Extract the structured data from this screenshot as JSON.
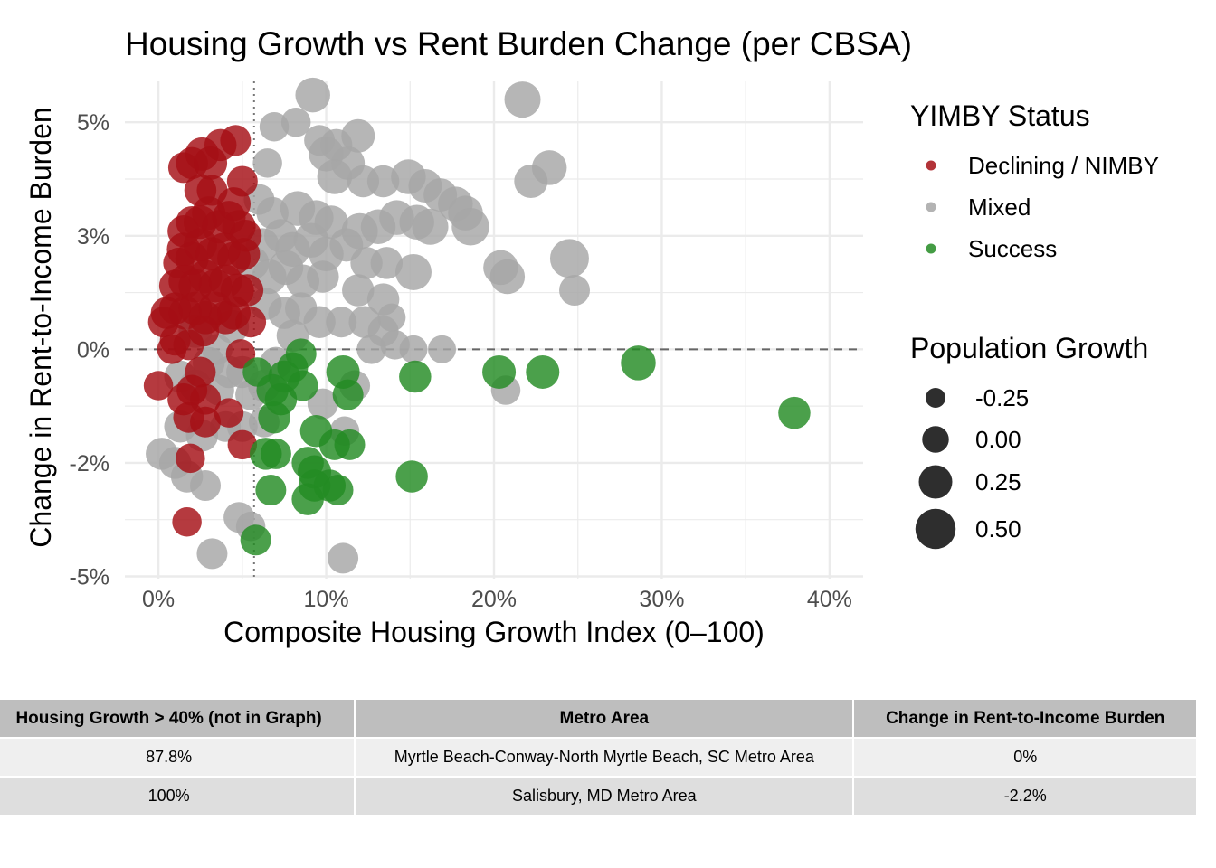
{
  "chart_data": {
    "type": "scatter",
    "title": "Housing Growth vs Rent Burden Change (per CBSA)",
    "xlabel": "Composite Housing Growth Index (0–100)",
    "ylabel": "Change in Rent-to-Income Burden",
    "xlim": [
      -2,
      42
    ],
    "ylim": [
      -5.05,
      5.9
    ],
    "x_ticks": [
      0,
      10,
      20,
      30,
      40
    ],
    "x_tick_labels": [
      "0%",
      "10%",
      "20%",
      "30%",
      "40%"
    ],
    "y_ticks": [
      -5,
      -2.5,
      0,
      2.5,
      5
    ],
    "y_tick_labels": [
      "-5%",
      "-2%",
      "0%",
      "3%",
      "5%"
    ],
    "reference_lines": {
      "horizontal_y": 0,
      "horizontal_style": "dashed",
      "vertical_x": 5.7,
      "vertical_style": "dotted"
    },
    "grid": true,
    "legend_position": "right",
    "color_legend": {
      "title": "YIMBY Status",
      "entries": [
        {
          "name": "Declining / NIMBY",
          "color": "#a50f15"
        },
        {
          "name": "Mixed",
          "color": "#a6a6a6"
        },
        {
          "name": "Success",
          "color": "#238b23"
        }
      ]
    },
    "size_legend": {
      "title": "Population Growth",
      "values": [
        -0.25,
        0.0,
        0.25,
        0.5
      ],
      "labels": [
        "-0.25",
        "0.00",
        "0.25",
        "0.50"
      ]
    },
    "series": [
      {
        "name": "Mixed",
        "color": "#a6a6a6",
        "points": [
          [
            9.2,
            5.6,
            0.3
          ],
          [
            21.7,
            5.5,
            0.35
          ],
          [
            6.9,
            4.9,
            0.1
          ],
          [
            8.2,
            5.0,
            0.1
          ],
          [
            9.6,
            4.6,
            0.15
          ],
          [
            10.6,
            4.5,
            0.2
          ],
          [
            11.9,
            4.7,
            0.25
          ],
          [
            6.5,
            4.1,
            0.1
          ],
          [
            10.0,
            4.3,
            0.3
          ],
          [
            11.3,
            4.1,
            0.25
          ],
          [
            12.2,
            3.7,
            0.2
          ],
          [
            10.5,
            3.8,
            0.3
          ],
          [
            13.4,
            3.7,
            0.2
          ],
          [
            14.9,
            3.8,
            0.3
          ],
          [
            15.9,
            3.6,
            0.25
          ],
          [
            16.8,
            3.4,
            0.25
          ],
          [
            17.7,
            3.2,
            0.3
          ],
          [
            18.3,
            3.0,
            0.3
          ],
          [
            22.2,
            3.7,
            0.25
          ],
          [
            23.3,
            4.0,
            0.3
          ],
          [
            6.0,
            3.3,
            0.15
          ],
          [
            6.8,
            3.0,
            0.2
          ],
          [
            8.3,
            3.1,
            0.3
          ],
          [
            9.4,
            2.9,
            0.3
          ],
          [
            10.3,
            2.8,
            0.25
          ],
          [
            12.0,
            2.6,
            0.35
          ],
          [
            13.1,
            2.7,
            0.3
          ],
          [
            14.2,
            2.9,
            0.3
          ],
          [
            15.4,
            2.8,
            0.3
          ],
          [
            16.2,
            2.7,
            0.35
          ],
          [
            18.6,
            2.7,
            0.4
          ],
          [
            6.2,
            2.3,
            0.25
          ],
          [
            7.3,
            2.5,
            0.25
          ],
          [
            8.0,
            2.2,
            0.3
          ],
          [
            9.1,
            2.4,
            0.3
          ],
          [
            10.0,
            2.1,
            0.3
          ],
          [
            11.2,
            2.3,
            0.25
          ],
          [
            12.4,
            1.9,
            0.2
          ],
          [
            13.6,
            1.9,
            0.2
          ],
          [
            15.2,
            1.7,
            0.35
          ],
          [
            5.6,
            1.9,
            0.25
          ],
          [
            6.6,
            1.6,
            0.3
          ],
          [
            7.6,
            1.8,
            0.3
          ],
          [
            8.6,
            1.5,
            0.25
          ],
          [
            9.8,
            1.6,
            0.2
          ],
          [
            11.9,
            1.3,
            0.2
          ],
          [
            13.4,
            1.1,
            0.2
          ],
          [
            20.4,
            1.8,
            0.3
          ],
          [
            20.8,
            1.6,
            0.3
          ],
          [
            24.5,
            2.0,
            0.45
          ],
          [
            24.8,
            1.3,
            0.15
          ],
          [
            6.4,
            1.0,
            0.2
          ],
          [
            7.5,
            0.8,
            0.2
          ],
          [
            8.5,
            0.9,
            0.2
          ],
          [
            9.6,
            0.6,
            0.2
          ],
          [
            10.9,
            0.6,
            0.15
          ],
          [
            12.3,
            0.6,
            0.2
          ],
          [
            13.4,
            0.4,
            0.15
          ],
          [
            14.1,
            0.1,
            0.1
          ],
          [
            15.2,
            0.0,
            0.05
          ],
          [
            16.9,
            0.0,
            0.05
          ],
          [
            13.9,
            0.7,
            0.05
          ],
          [
            2.2,
            0.4,
            0.25
          ],
          [
            3.0,
            -0.3,
            0.2
          ],
          [
            4.2,
            -0.5,
            0.2
          ],
          [
            5.0,
            -0.5,
            0.2
          ],
          [
            1.3,
            -0.6,
            0.2
          ],
          [
            2.2,
            -0.8,
            0.2
          ],
          [
            3.6,
            -0.9,
            0.15
          ],
          [
            5.5,
            -1.0,
            0.15
          ],
          [
            6.3,
            -0.8,
            0.2
          ],
          [
            1.3,
            -1.7,
            0.2
          ],
          [
            2.6,
            -1.9,
            0.2
          ],
          [
            4.0,
            -1.7,
            0.15
          ],
          [
            5.0,
            -1.7,
            0.15
          ],
          [
            0.2,
            -2.3,
            0.2
          ],
          [
            1.0,
            -2.5,
            0.2
          ],
          [
            1.7,
            -2.8,
            0.2
          ],
          [
            2.8,
            -3.0,
            0.15
          ],
          [
            4.8,
            -3.7,
            0.15
          ],
          [
            5.5,
            -3.9,
            0.1
          ],
          [
            3.2,
            -4.5,
            0.15
          ],
          [
            11.0,
            -4.6,
            0.15
          ],
          [
            20.7,
            -0.9,
            0.1
          ],
          [
            11.7,
            -0.8,
            0.15
          ],
          [
            9.8,
            -1.2,
            0.15
          ],
          [
            3.5,
            0.0,
            0.15
          ],
          [
            4.4,
            0.5,
            0.25
          ],
          [
            8.0,
            0.3,
            0.2
          ],
          [
            12.7,
            0.0,
            0.1
          ],
          [
            7.0,
            -0.3,
            0.2
          ],
          [
            6.3,
            -1.6,
            0.15
          ],
          [
            11.1,
            -1.8,
            0.1
          ]
        ]
      },
      {
        "name": "Declining / NIMBY",
        "color": "#a50f15",
        "points": [
          [
            1.5,
            4.0,
            0.15
          ],
          [
            2.0,
            4.1,
            0.2
          ],
          [
            2.6,
            4.3,
            0.25
          ],
          [
            3.7,
            4.5,
            0.2
          ],
          [
            4.6,
            4.6,
            0.15
          ],
          [
            3.1,
            4.1,
            0.25
          ],
          [
            5.0,
            3.7,
            0.15
          ],
          [
            2.5,
            3.5,
            0.2
          ],
          [
            4.5,
            3.2,
            0.25
          ],
          [
            1.5,
            2.6,
            0.2
          ],
          [
            2.0,
            2.8,
            0.2
          ],
          [
            2.5,
            2.8,
            0.25
          ],
          [
            3.0,
            3.0,
            0.25
          ],
          [
            3.6,
            2.7,
            0.25
          ],
          [
            4.2,
            2.9,
            0.25
          ],
          [
            4.8,
            2.7,
            0.25
          ],
          [
            5.2,
            2.5,
            0.2
          ],
          [
            1.5,
            2.2,
            0.25
          ],
          [
            2.0,
            2.0,
            0.25
          ],
          [
            2.5,
            2.3,
            0.25
          ],
          [
            3.2,
            2.1,
            0.25
          ],
          [
            3.9,
            2.2,
            0.25
          ],
          [
            4.5,
            2.0,
            0.25
          ],
          [
            5.1,
            2.1,
            0.2
          ],
          [
            1.0,
            1.4,
            0.2
          ],
          [
            1.6,
            1.5,
            0.25
          ],
          [
            2.2,
            1.4,
            0.25
          ],
          [
            2.8,
            1.6,
            0.25
          ],
          [
            3.4,
            1.4,
            0.25
          ],
          [
            4.0,
            1.5,
            0.25
          ],
          [
            4.7,
            1.3,
            0.25
          ],
          [
            5.3,
            1.3,
            0.2
          ],
          [
            0.5,
            0.8,
            0.2
          ],
          [
            1.0,
            0.9,
            0.2
          ],
          [
            1.6,
            0.8,
            0.25
          ],
          [
            2.2,
            0.9,
            0.25
          ],
          [
            2.8,
            0.7,
            0.25
          ],
          [
            3.4,
            0.9,
            0.25
          ],
          [
            4.0,
            0.7,
            0.25
          ],
          [
            4.5,
            0.8,
            0.25
          ],
          [
            5.5,
            0.6,
            0.15
          ],
          [
            0.3,
            0.6,
            0.15
          ],
          [
            1.0,
            0.2,
            0.15
          ],
          [
            1.8,
            0.1,
            0.15
          ],
          [
            0.8,
            0.0,
            0.1
          ],
          [
            2.5,
            -0.5,
            0.15
          ],
          [
            2.0,
            -0.9,
            0.15
          ],
          [
            1.5,
            -1.1,
            0.2
          ],
          [
            2.8,
            -1.1,
            0.15
          ],
          [
            1.8,
            -1.5,
            0.15
          ],
          [
            2.8,
            -1.6,
            0.15
          ],
          [
            4.2,
            -1.4,
            0.1
          ],
          [
            5.0,
            -2.1,
            0.1
          ],
          [
            1.9,
            -2.4,
            0.1
          ],
          [
            1.7,
            -3.8,
            0.1
          ],
          [
            0.0,
            -0.8,
            0.1
          ],
          [
            4.9,
            -0.1,
            0.1
          ],
          [
            2.7,
            0.4,
            0.15
          ],
          [
            3.2,
            3.5,
            0.15
          ],
          [
            1.2,
            1.9,
            0.15
          ]
        ]
      },
      {
        "name": "Success",
        "color": "#238b23",
        "points": [
          [
            8.5,
            -0.1,
            0.15
          ],
          [
            8.0,
            -0.4,
            0.15
          ],
          [
            7.5,
            -0.6,
            0.2
          ],
          [
            6.8,
            -0.9,
            0.2
          ],
          [
            7.3,
            -1.1,
            0.2
          ],
          [
            6.9,
            -1.5,
            0.2
          ],
          [
            8.6,
            -0.8,
            0.15
          ],
          [
            5.9,
            -0.5,
            0.1
          ],
          [
            11.0,
            -0.5,
            0.25
          ],
          [
            11.3,
            -1.0,
            0.15
          ],
          [
            15.3,
            -0.6,
            0.2
          ],
          [
            20.3,
            -0.5,
            0.25
          ],
          [
            22.9,
            -0.5,
            0.25
          ],
          [
            28.6,
            -0.3,
            0.3
          ],
          [
            37.9,
            -1.4,
            0.2
          ],
          [
            9.4,
            -1.8,
            0.2
          ],
          [
            10.5,
            -2.1,
            0.15
          ],
          [
            11.4,
            -2.1,
            0.15
          ],
          [
            8.9,
            -2.5,
            0.2
          ],
          [
            9.3,
            -2.7,
            0.25
          ],
          [
            10.2,
            -3.0,
            0.2
          ],
          [
            10.7,
            -3.1,
            0.15
          ],
          [
            6.4,
            -2.3,
            0.2
          ],
          [
            7.0,
            -2.3,
            0.15
          ],
          [
            6.7,
            -3.1,
            0.15
          ],
          [
            8.9,
            -3.3,
            0.2
          ],
          [
            15.1,
            -2.8,
            0.2
          ],
          [
            5.8,
            -4.2,
            0.15
          ],
          [
            9.3,
            -3.0,
            0.2
          ]
        ]
      }
    ]
  },
  "table": {
    "headers": [
      "Housing Growth > 40% (not in Graph)",
      "Metro Area",
      "Change in Rent-to-Income Burden"
    ],
    "rows": [
      [
        "87.8%",
        "Myrtle Beach-Conway-North Myrtle Beach, SC Metro Area",
        "0%"
      ],
      [
        "100%",
        "Salisbury, MD Metro Area",
        "-2.2%"
      ]
    ]
  }
}
